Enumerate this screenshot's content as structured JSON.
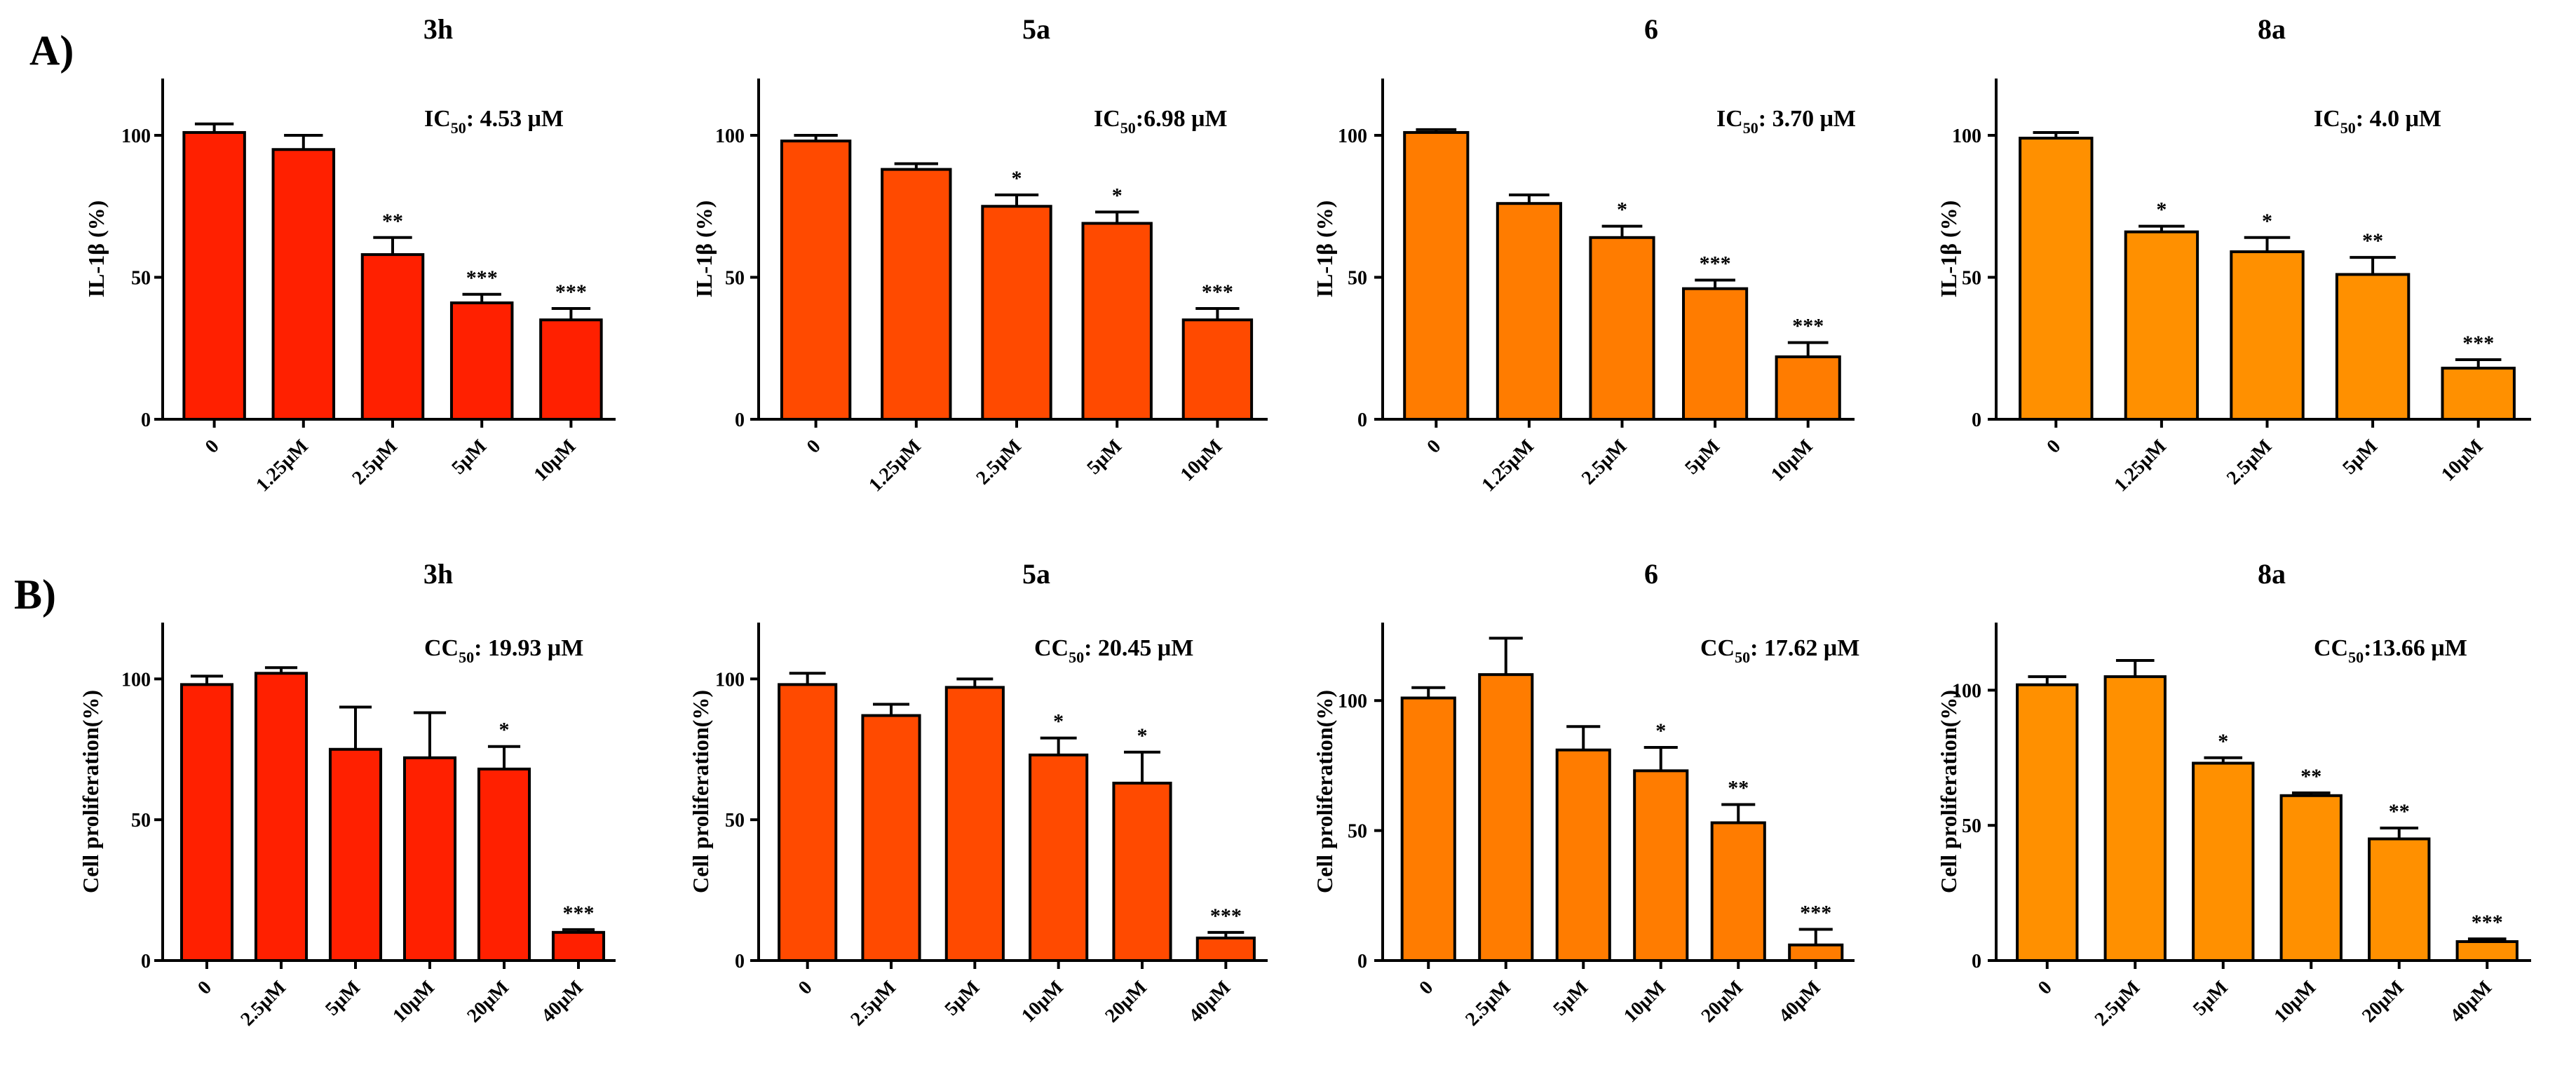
{
  "colors": {
    "3h": "#ff2000",
    "5a": "#ff4a00",
    "6": "#ff7c00",
    "8a": "#ff9000",
    "outline": "#000000"
  },
  "chart_data": [
    {
      "section": "A)",
      "type": "bar",
      "title": "3h",
      "compound": "3h",
      "metric": {
        "label": "IC",
        "sub": "50",
        "value": ": 4.53 μM"
      },
      "ylabel": "IL-1β (%)",
      "ylim": [
        0,
        120
      ],
      "yticks": [
        "0",
        "50",
        "100"
      ],
      "categories": [
        "0",
        "1.25μM",
        "2.5μM",
        "5μM",
        "10μM"
      ],
      "values": [
        101,
        95,
        58,
        41,
        35
      ],
      "errors": [
        3,
        5,
        6,
        3,
        4
      ],
      "significance": [
        "",
        "",
        "**",
        "***",
        "***"
      ]
    },
    {
      "section": "A)",
      "type": "bar",
      "title": "5a",
      "compound": "5a",
      "metric": {
        "label": "IC",
        "sub": "50",
        "value": ":6.98 μM"
      },
      "ylabel": "IL-1β (%)",
      "ylim": [
        0,
        120
      ],
      "yticks": [
        "0",
        "50",
        "100"
      ],
      "categories": [
        "0",
        "1.25μM",
        "2.5μM",
        "5μM",
        "10μM"
      ],
      "values": [
        98,
        88,
        75,
        69,
        35
      ],
      "errors": [
        2,
        2,
        4,
        4,
        4
      ],
      "significance": [
        "",
        "",
        "*",
        "*",
        "***"
      ]
    },
    {
      "section": "A)",
      "type": "bar",
      "title": "6",
      "compound": "6",
      "metric": {
        "label": "IC",
        "sub": "50",
        "value": ": 3.70 μM"
      },
      "ylabel": "IL-1β (%)",
      "ylim": [
        0,
        120
      ],
      "yticks": [
        "0",
        "50",
        "100"
      ],
      "categories": [
        "0",
        "1.25μM",
        "2.5μM",
        "5μM",
        "10μM"
      ],
      "values": [
        101,
        76,
        64,
        46,
        22
      ],
      "errors": [
        1,
        3,
        4,
        3,
        5
      ],
      "significance": [
        "",
        "",
        "*",
        "***",
        "***"
      ]
    },
    {
      "section": "A)",
      "type": "bar",
      "title": "8a",
      "compound": "8a",
      "metric": {
        "label": "IC",
        "sub": "50",
        "value": ": 4.0 μM"
      },
      "ylabel": "IL-1β (%)",
      "ylim": [
        0,
        120
      ],
      "yticks": [
        "0",
        "50",
        "100"
      ],
      "categories": [
        "0",
        "1.25μM",
        "2.5μM",
        "5μM",
        "10μM"
      ],
      "values": [
        99,
        66,
        59,
        51,
        18
      ],
      "errors": [
        2,
        2,
        5,
        6,
        3
      ],
      "significance": [
        "",
        "*",
        "*",
        "**",
        "***"
      ]
    },
    {
      "section": "B)",
      "type": "bar",
      "title": "3h",
      "compound": "3h",
      "metric": {
        "label": "CC",
        "sub": "50",
        "value": ": 19.93 μM"
      },
      "ylabel": "Cell proliferation(%)",
      "ylim": [
        0,
        120
      ],
      "yticks": [
        "0",
        "50",
        "100"
      ],
      "categories": [
        "0",
        "2.5μM",
        "5μM",
        "10μM",
        "20μM",
        "40μM"
      ],
      "values": [
        98,
        102,
        75,
        72,
        68,
        10
      ],
      "errors": [
        3,
        2,
        15,
        16,
        8,
        1
      ],
      "significance": [
        "",
        "",
        "",
        "",
        "*",
        "***"
      ]
    },
    {
      "section": "B)",
      "type": "bar",
      "title": "5a",
      "compound": "5a",
      "metric": {
        "label": "CC",
        "sub": "50",
        "value": ": 20.45 μM"
      },
      "ylabel": "Cell proliferation(%)",
      "ylim": [
        0,
        120
      ],
      "yticks": [
        "0",
        "50",
        "100"
      ],
      "categories": [
        "0",
        "2.5μM",
        "5μM",
        "10μM",
        "20μM",
        "40μM"
      ],
      "values": [
        98,
        87,
        97,
        73,
        63,
        8
      ],
      "errors": [
        4,
        4,
        3,
        6,
        11,
        2
      ],
      "significance": [
        "",
        "",
        "",
        "*",
        "*",
        "***"
      ]
    },
    {
      "section": "B)",
      "type": "bar",
      "title": "6",
      "compound": "6",
      "metric": {
        "label": "CC",
        "sub": "50",
        "value": ": 17.62 μM"
      },
      "ylabel": "Cell proliferation(%)",
      "ylim": [
        0,
        130
      ],
      "yticks": [
        "0",
        "50",
        "100"
      ],
      "categories": [
        "0",
        "2.5μM",
        "5μM",
        "10μM",
        "20μM",
        "40μM"
      ],
      "values": [
        101,
        110,
        81,
        73,
        53,
        6
      ],
      "errors": [
        4,
        14,
        9,
        9,
        7,
        6
      ],
      "significance": [
        "",
        "",
        "",
        "*",
        "**",
        "***"
      ]
    },
    {
      "section": "B)",
      "type": "bar",
      "title": "8a",
      "compound": "8a",
      "metric": {
        "label": "CC",
        "sub": "50",
        "value": ":13.66 μM"
      },
      "ylabel": "Cell proliferation(%)",
      "ylim": [
        0,
        125
      ],
      "yticks": [
        "0",
        "50",
        "100"
      ],
      "categories": [
        "0",
        "2.5μM",
        "5μM",
        "10μM",
        "20μM",
        "40μM"
      ],
      "values": [
        102,
        105,
        73,
        61,
        45,
        7
      ],
      "errors": [
        3,
        6,
        2,
        1,
        4,
        1
      ],
      "significance": [
        "",
        "",
        "*",
        "**",
        "**",
        "***"
      ]
    }
  ]
}
